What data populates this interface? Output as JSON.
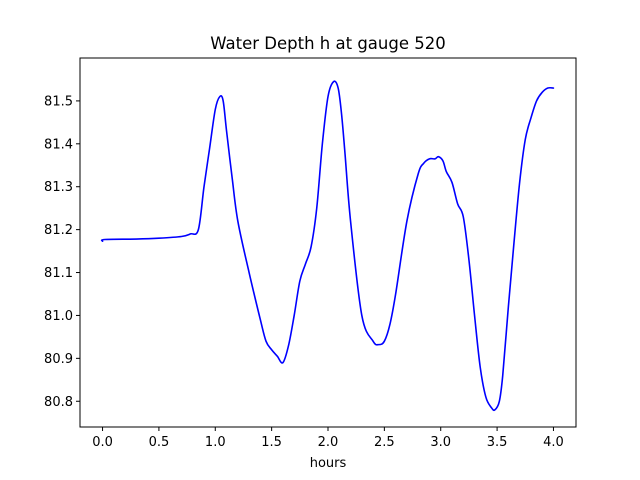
{
  "chart_data": {
    "type": "line",
    "title": "Water Depth h at gauge 520",
    "xlabel": "hours",
    "ylabel": "",
    "xlim": [
      -0.2,
      4.2
    ],
    "ylim": [
      80.74,
      81.6
    ],
    "xticks": [
      "0.0",
      "0.5",
      "1.0",
      "1.5",
      "2.0",
      "2.5",
      "3.0",
      "3.5",
      "4.0"
    ],
    "yticks": [
      "80.8",
      "80.9",
      "81.0",
      "81.1",
      "81.2",
      "81.3",
      "81.4",
      "81.5"
    ],
    "grid": false,
    "legend": "none",
    "series": [
      {
        "color": "#0000ff",
        "x": [
          0.0,
          0.02,
          0.3,
          0.5,
          0.7,
          0.78,
          0.85,
          0.9,
          0.95,
          1.0,
          1.04,
          1.07,
          1.1,
          1.15,
          1.2,
          1.3,
          1.4,
          1.45,
          1.5,
          1.55,
          1.6,
          1.65,
          1.7,
          1.75,
          1.8,
          1.85,
          1.9,
          1.95,
          2.0,
          2.05,
          2.09,
          2.12,
          2.15,
          2.2,
          2.3,
          2.4,
          2.45,
          2.5,
          2.55,
          2.6,
          2.7,
          2.8,
          2.85,
          2.9,
          2.95,
          2.98,
          3.02,
          3.05,
          3.1,
          3.15,
          3.2,
          3.25,
          3.3,
          3.35,
          3.4,
          3.45,
          3.48,
          3.52,
          3.55,
          3.6,
          3.65,
          3.7,
          3.75,
          3.8,
          3.85,
          3.9,
          3.95,
          4.0
        ],
        "y": [
          81.173,
          81.177,
          81.178,
          81.18,
          81.184,
          81.19,
          81.2,
          81.3,
          81.39,
          81.48,
          81.51,
          81.5,
          81.43,
          81.32,
          81.22,
          81.1,
          80.99,
          80.94,
          80.92,
          80.905,
          80.89,
          80.93,
          81.0,
          81.08,
          81.12,
          81.16,
          81.25,
          81.4,
          81.51,
          81.545,
          81.53,
          81.47,
          81.38,
          81.22,
          81.0,
          80.94,
          80.932,
          80.94,
          80.98,
          81.05,
          81.22,
          81.33,
          81.355,
          81.365,
          81.365,
          81.37,
          81.36,
          81.335,
          81.31,
          81.26,
          81.23,
          81.13,
          81.0,
          80.88,
          80.81,
          80.785,
          80.78,
          80.8,
          80.86,
          81.02,
          81.17,
          81.31,
          81.41,
          81.46,
          81.5,
          81.52,
          81.53,
          81.53
        ]
      }
    ]
  }
}
